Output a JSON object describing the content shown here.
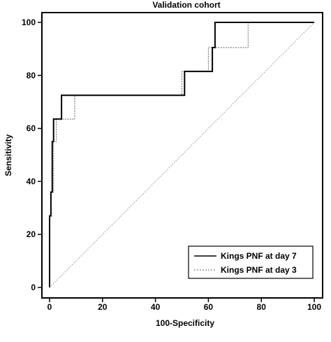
{
  "chart_data": {
    "type": "line",
    "title": "Validation cohort",
    "xlabel": "100-Specificity",
    "ylabel": "Sensitivity",
    "xlim": [
      0,
      100
    ],
    "ylim": [
      0,
      100
    ],
    "xticks": [
      0,
      20,
      40,
      60,
      80,
      100
    ],
    "yticks": [
      0,
      20,
      40,
      60,
      80,
      100
    ],
    "grid": false,
    "legend_position": "bottom-right",
    "reference_line": {
      "x": [
        0,
        100
      ],
      "y": [
        0,
        100
      ]
    },
    "series": [
      {
        "name": "Kings PNF at day 7",
        "style": "solid",
        "color": "#000000",
        "x": [
          0,
          0,
          0.5,
          0.5,
          1,
          1,
          1.5,
          1.5,
          2,
          2,
          4.5,
          4.5,
          51,
          51,
          61.5,
          61.5,
          62.5,
          62.5,
          100
        ],
        "y": [
          0,
          27,
          27,
          36,
          36,
          55,
          55,
          63.5,
          63.5,
          63.5,
          63.5,
          72.5,
          72.5,
          81.5,
          81.5,
          90.5,
          90.5,
          100,
          100
        ]
      },
      {
        "name": "Kings PNF at day 3",
        "style": "dashed",
        "color": "#666666",
        "x": [
          0,
          0,
          0.5,
          0.5,
          1.5,
          1.5,
          2.5,
          2.5,
          9.5,
          9.5,
          50,
          50,
          60,
          60,
          75,
          75,
          100
        ],
        "y": [
          0,
          27,
          27,
          36,
          36,
          55,
          55,
          63.5,
          63.5,
          72.5,
          72.5,
          81.5,
          81.5,
          90.5,
          90.5,
          100,
          100
        ]
      }
    ]
  }
}
